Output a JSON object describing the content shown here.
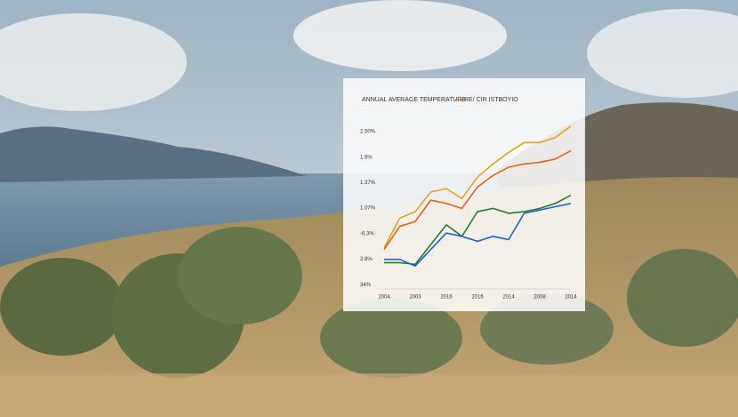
{
  "chart_data": {
    "type": "line",
    "title": "ANNUAL AVERAGE TEMPERATURE",
    "y_axis_labels": [
      "2.50%",
      "1.6%",
      "1.37%",
      "1.07%",
      "-6.3%",
      "2.8%",
      "34%"
    ],
    "categories": [
      "2004",
      null,
      "2003",
      null,
      "2016",
      null,
      "2016",
      null,
      "2014",
      null,
      "2008",
      null,
      "2014"
    ],
    "ylim": [
      0,
      100
    ],
    "series": [
      {
        "color": "#e0a51c",
        "values": [
          25,
          43,
          47,
          59,
          61,
          55,
          68,
          76,
          83,
          89,
          89,
          92,
          99
        ]
      },
      {
        "name": "RE/ CIR ISTBOYIO",
        "color": "#e0651c",
        "values": [
          24,
          38,
          41,
          54,
          52,
          49,
          62,
          69,
          74,
          76,
          77,
          79,
          84
        ]
      },
      {
        "color": "#2a7a2a",
        "values": [
          16,
          16,
          15,
          27,
          39,
          32,
          47,
          49,
          46,
          47,
          49,
          52,
          57
        ]
      },
      {
        "color": "#2162c4",
        "values": [
          18,
          18,
          14,
          24,
          34,
          32,
          29,
          32,
          30,
          46,
          48,
          50,
          52
        ]
      }
    ]
  }
}
